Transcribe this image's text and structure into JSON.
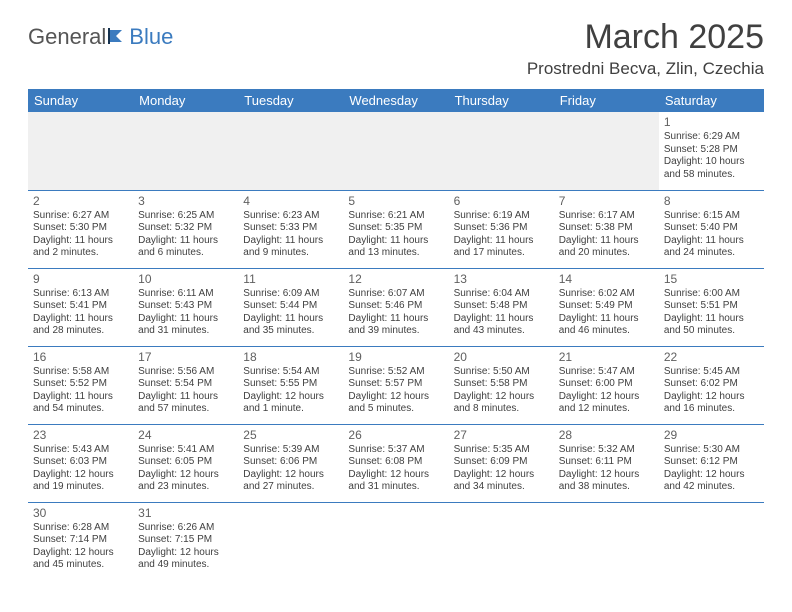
{
  "logo": {
    "text1": "General",
    "text2": "Blue"
  },
  "title": "March 2025",
  "location": "Prostredni Becva, Zlin, Czechia",
  "colors": {
    "header_bg": "#3b7bbf",
    "header_fg": "#ffffff",
    "cell_border": "#3b7bbf",
    "empty_bg": "#f0f0f0",
    "text": "#404040"
  },
  "weekdays": [
    "Sunday",
    "Monday",
    "Tuesday",
    "Wednesday",
    "Thursday",
    "Friday",
    "Saturday"
  ],
  "weeks": [
    [
      null,
      null,
      null,
      null,
      null,
      null,
      {
        "n": "1",
        "sr": "Sunrise: 6:29 AM",
        "ss": "Sunset: 5:28 PM",
        "dl1": "Daylight: 10 hours",
        "dl2": "and 58 minutes."
      }
    ],
    [
      {
        "n": "2",
        "sr": "Sunrise: 6:27 AM",
        "ss": "Sunset: 5:30 PM",
        "dl1": "Daylight: 11 hours",
        "dl2": "and 2 minutes."
      },
      {
        "n": "3",
        "sr": "Sunrise: 6:25 AM",
        "ss": "Sunset: 5:32 PM",
        "dl1": "Daylight: 11 hours",
        "dl2": "and 6 minutes."
      },
      {
        "n": "4",
        "sr": "Sunrise: 6:23 AM",
        "ss": "Sunset: 5:33 PM",
        "dl1": "Daylight: 11 hours",
        "dl2": "and 9 minutes."
      },
      {
        "n": "5",
        "sr": "Sunrise: 6:21 AM",
        "ss": "Sunset: 5:35 PM",
        "dl1": "Daylight: 11 hours",
        "dl2": "and 13 minutes."
      },
      {
        "n": "6",
        "sr": "Sunrise: 6:19 AM",
        "ss": "Sunset: 5:36 PM",
        "dl1": "Daylight: 11 hours",
        "dl2": "and 17 minutes."
      },
      {
        "n": "7",
        "sr": "Sunrise: 6:17 AM",
        "ss": "Sunset: 5:38 PM",
        "dl1": "Daylight: 11 hours",
        "dl2": "and 20 minutes."
      },
      {
        "n": "8",
        "sr": "Sunrise: 6:15 AM",
        "ss": "Sunset: 5:40 PM",
        "dl1": "Daylight: 11 hours",
        "dl2": "and 24 minutes."
      }
    ],
    [
      {
        "n": "9",
        "sr": "Sunrise: 6:13 AM",
        "ss": "Sunset: 5:41 PM",
        "dl1": "Daylight: 11 hours",
        "dl2": "and 28 minutes."
      },
      {
        "n": "10",
        "sr": "Sunrise: 6:11 AM",
        "ss": "Sunset: 5:43 PM",
        "dl1": "Daylight: 11 hours",
        "dl2": "and 31 minutes."
      },
      {
        "n": "11",
        "sr": "Sunrise: 6:09 AM",
        "ss": "Sunset: 5:44 PM",
        "dl1": "Daylight: 11 hours",
        "dl2": "and 35 minutes."
      },
      {
        "n": "12",
        "sr": "Sunrise: 6:07 AM",
        "ss": "Sunset: 5:46 PM",
        "dl1": "Daylight: 11 hours",
        "dl2": "and 39 minutes."
      },
      {
        "n": "13",
        "sr": "Sunrise: 6:04 AM",
        "ss": "Sunset: 5:48 PM",
        "dl1": "Daylight: 11 hours",
        "dl2": "and 43 minutes."
      },
      {
        "n": "14",
        "sr": "Sunrise: 6:02 AM",
        "ss": "Sunset: 5:49 PM",
        "dl1": "Daylight: 11 hours",
        "dl2": "and 46 minutes."
      },
      {
        "n": "15",
        "sr": "Sunrise: 6:00 AM",
        "ss": "Sunset: 5:51 PM",
        "dl1": "Daylight: 11 hours",
        "dl2": "and 50 minutes."
      }
    ],
    [
      {
        "n": "16",
        "sr": "Sunrise: 5:58 AM",
        "ss": "Sunset: 5:52 PM",
        "dl1": "Daylight: 11 hours",
        "dl2": "and 54 minutes."
      },
      {
        "n": "17",
        "sr": "Sunrise: 5:56 AM",
        "ss": "Sunset: 5:54 PM",
        "dl1": "Daylight: 11 hours",
        "dl2": "and 57 minutes."
      },
      {
        "n": "18",
        "sr": "Sunrise: 5:54 AM",
        "ss": "Sunset: 5:55 PM",
        "dl1": "Daylight: 12 hours",
        "dl2": "and 1 minute."
      },
      {
        "n": "19",
        "sr": "Sunrise: 5:52 AM",
        "ss": "Sunset: 5:57 PM",
        "dl1": "Daylight: 12 hours",
        "dl2": "and 5 minutes."
      },
      {
        "n": "20",
        "sr": "Sunrise: 5:50 AM",
        "ss": "Sunset: 5:58 PM",
        "dl1": "Daylight: 12 hours",
        "dl2": "and 8 minutes."
      },
      {
        "n": "21",
        "sr": "Sunrise: 5:47 AM",
        "ss": "Sunset: 6:00 PM",
        "dl1": "Daylight: 12 hours",
        "dl2": "and 12 minutes."
      },
      {
        "n": "22",
        "sr": "Sunrise: 5:45 AM",
        "ss": "Sunset: 6:02 PM",
        "dl1": "Daylight: 12 hours",
        "dl2": "and 16 minutes."
      }
    ],
    [
      {
        "n": "23",
        "sr": "Sunrise: 5:43 AM",
        "ss": "Sunset: 6:03 PM",
        "dl1": "Daylight: 12 hours",
        "dl2": "and 19 minutes."
      },
      {
        "n": "24",
        "sr": "Sunrise: 5:41 AM",
        "ss": "Sunset: 6:05 PM",
        "dl1": "Daylight: 12 hours",
        "dl2": "and 23 minutes."
      },
      {
        "n": "25",
        "sr": "Sunrise: 5:39 AM",
        "ss": "Sunset: 6:06 PM",
        "dl1": "Daylight: 12 hours",
        "dl2": "and 27 minutes."
      },
      {
        "n": "26",
        "sr": "Sunrise: 5:37 AM",
        "ss": "Sunset: 6:08 PM",
        "dl1": "Daylight: 12 hours",
        "dl2": "and 31 minutes."
      },
      {
        "n": "27",
        "sr": "Sunrise: 5:35 AM",
        "ss": "Sunset: 6:09 PM",
        "dl1": "Daylight: 12 hours",
        "dl2": "and 34 minutes."
      },
      {
        "n": "28",
        "sr": "Sunrise: 5:32 AM",
        "ss": "Sunset: 6:11 PM",
        "dl1": "Daylight: 12 hours",
        "dl2": "and 38 minutes."
      },
      {
        "n": "29",
        "sr": "Sunrise: 5:30 AM",
        "ss": "Sunset: 6:12 PM",
        "dl1": "Daylight: 12 hours",
        "dl2": "and 42 minutes."
      }
    ],
    [
      {
        "n": "30",
        "sr": "Sunrise: 6:28 AM",
        "ss": "Sunset: 7:14 PM",
        "dl1": "Daylight: 12 hours",
        "dl2": "and 45 minutes."
      },
      {
        "n": "31",
        "sr": "Sunrise: 6:26 AM",
        "ss": "Sunset: 7:15 PM",
        "dl1": "Daylight: 12 hours",
        "dl2": "and 49 minutes."
      },
      null,
      null,
      null,
      null,
      null
    ]
  ]
}
